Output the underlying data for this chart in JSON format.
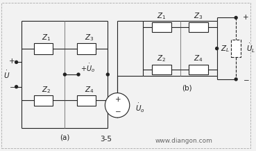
{
  "bg_color": "#f2f2f2",
  "line_color": "#222222",
  "fig_w": 3.69,
  "fig_h": 2.17,
  "dpi": 100,
  "font_size": 7.5,
  "small_font": 6.5,
  "a_label": "(a)",
  "b_label": "(b)",
  "fig_label": "3-5",
  "watermark": "www.diangon.com"
}
